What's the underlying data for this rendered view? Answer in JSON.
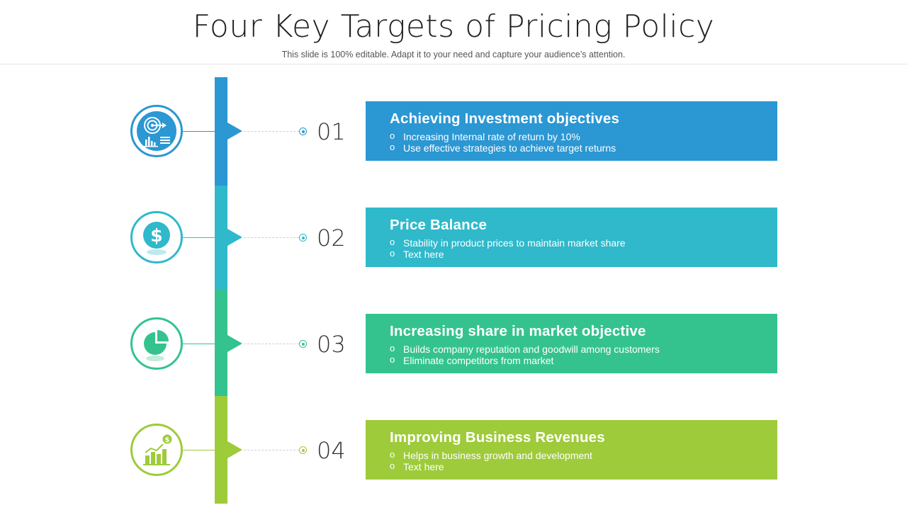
{
  "header": {
    "title": "Four Key Targets of Pricing Policy",
    "subtitle": "This slide is 100% editable. Adapt it to your need and capture your audience’s attention."
  },
  "colors": {
    "blue": "#2b97d3",
    "teal": "#2fb9cb",
    "green": "#34c38f",
    "lime": "#9ecb3a"
  },
  "items": [
    {
      "number": "01",
      "title": "Achieving Investment objectives",
      "points": [
        "Increasing Internal rate of return by 10%",
        "Use effective strategies to achieve target returns"
      ],
      "icon": "target-chart-icon"
    },
    {
      "number": "02",
      "title": "Price Balance",
      "points": [
        "Stability in product prices to maintain market share",
        "Text here"
      ],
      "icon": "dollar-coin-icon"
    },
    {
      "number": "03",
      "title": "Increasing share in market objective",
      "points": [
        "Builds company reputation and goodwill among customers",
        "Eliminate competitors from market"
      ],
      "icon": "pie-chart-icon"
    },
    {
      "number": "04",
      "title": "Improving Business Revenues",
      "points": [
        "Helps in business growth and development",
        "Text here"
      ],
      "icon": "revenue-growth-icon"
    }
  ]
}
